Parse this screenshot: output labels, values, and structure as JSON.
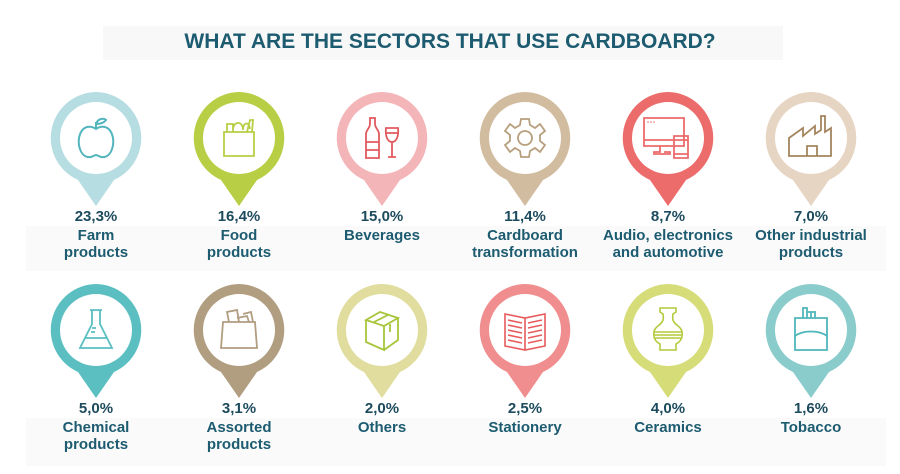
{
  "title": "WHAT ARE THE SECTORS THAT USE CARDBOARD?",
  "sectors": [
    {
      "pct": "23,3%",
      "line1": "Farm",
      "line2": "products",
      "icon": "apple-icon",
      "color": "#b6dde1",
      "iconColor": "#52b5bd"
    },
    {
      "pct": "16,4%",
      "line1": "Food",
      "line2": "products",
      "icon": "grocery-bag-icon",
      "color": "#b8cf45",
      "iconColor": "#b8cf45"
    },
    {
      "pct": "15,0%",
      "line1": "Beverages",
      "line2": "",
      "icon": "wine-bottle-glass-icon",
      "color": "#f4b5b8",
      "iconColor": "#e0595d"
    },
    {
      "pct": "11,4%",
      "line1": "Cardboard",
      "line2": "transformation",
      "icon": "gear-icon",
      "color": "#d2bc9f",
      "iconColor": "#b79f7e"
    },
    {
      "pct": "8,7%",
      "line1": "Audio, electronics",
      "line2": "and automotive",
      "icon": "devices-icon",
      "color": "#ec6b6b",
      "iconColor": "#ec6b6b"
    },
    {
      "pct": "7,0%",
      "line1": "Other industrial",
      "line2": "products",
      "icon": "factory-icon",
      "color": "#e7d5c3",
      "iconColor": "#a4855e"
    },
    {
      "pct": "5,0%",
      "line1": "Chemical",
      "line2": "products",
      "icon": "flask-icon",
      "color": "#5bbfc2",
      "iconColor": "#5bbfc2"
    },
    {
      "pct": "3,1%",
      "line1": "Assorted",
      "line2": "products",
      "icon": "shopping-bag-icon",
      "color": "#b19d80",
      "iconColor": "#b19d80"
    },
    {
      "pct": "2,0%",
      "line1": "Others",
      "line2": "",
      "icon": "box-icon",
      "color": "#e0dd9e",
      "iconColor": "#a7c63a"
    },
    {
      "pct": "2,5%",
      "line1": "Stationery",
      "line2": "",
      "icon": "book-icon",
      "color": "#f08d8e",
      "iconColor": "#e85a5c"
    },
    {
      "pct": "4,0%",
      "line1": "Ceramics",
      "line2": "",
      "icon": "vase-icon",
      "color": "#d6dc78",
      "iconColor": "#b4c93a"
    },
    {
      "pct": "1,6%",
      "line1": "Tobacco",
      "line2": "",
      "icon": "cigarette-pack-icon",
      "color": "#8acbcc",
      "iconColor": "#4fb6bb"
    }
  ]
}
